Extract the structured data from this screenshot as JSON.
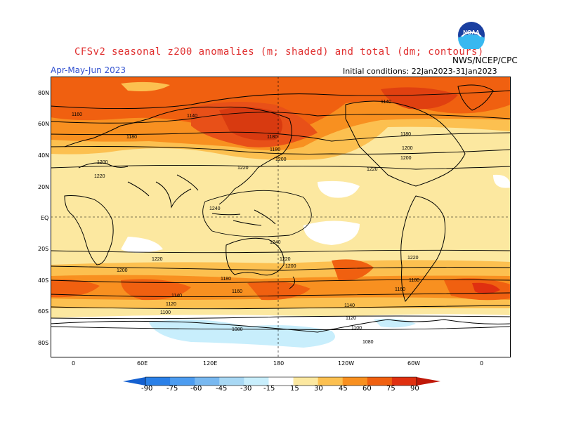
{
  "header": {
    "title": "CFSv2 seasonal z200 anomalies (m; shaded) and total (dm; contours)",
    "period": "Apr-May-Jun 2023",
    "initial_conditions": "Initial conditions: 22Jan2023-31Jan2023",
    "agency": "NWS/NCEP/CPC",
    "logo_text": "NOAA"
  },
  "map": {
    "lat_labels": [
      "80N",
      "60N",
      "40N",
      "20N",
      "EQ",
      "20S",
      "40S",
      "60S",
      "80S"
    ],
    "lon_labels": [
      "0",
      "60E",
      "120E",
      "180",
      "120W",
      "60W",
      "0"
    ],
    "contour_labels": [
      "1160",
      "1140",
      "1180",
      "1180",
      "1200",
      "1220",
      "1180",
      "1200",
      "1220",
      "1140",
      "1180",
      "1200",
      "1200",
      "1220",
      "1240",
      "1240",
      "1220",
      "1220",
      "1220",
      "1200",
      "1200",
      "1180",
      "1180",
      "1160",
      "1160",
      "1140",
      "1140",
      "1120",
      "1120",
      "1100",
      "1100",
      "1080",
      "1080"
    ]
  },
  "colorbar": {
    "labels": [
      "-90",
      "-75",
      "-60",
      "-45",
      "-30",
      "-15",
      "15",
      "30",
      "45",
      "60",
      "75",
      "90"
    ],
    "colors": [
      "#1460d0",
      "#2a80e8",
      "#4c9cf0",
      "#78b8f0",
      "#a8d8f4",
      "#c8eefc",
      "#ffffff",
      "#fce8a0",
      "#fcc050",
      "#f89020",
      "#f06010",
      "#e03010",
      "#c01808"
    ]
  }
}
